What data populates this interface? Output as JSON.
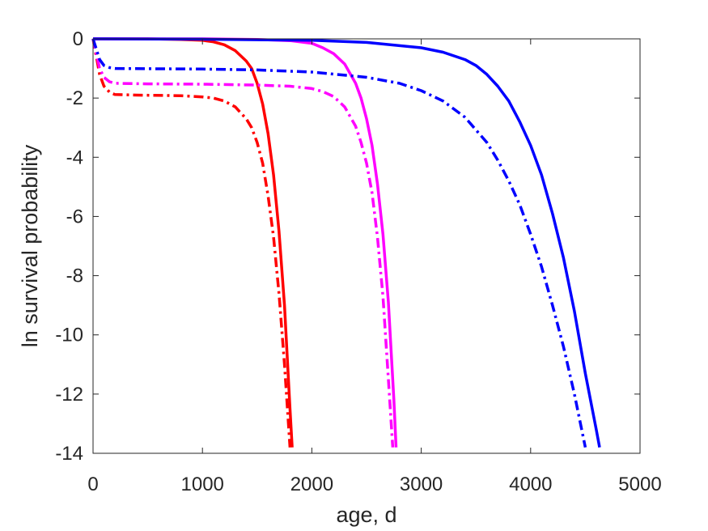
{
  "chart_data": {
    "type": "line",
    "title": "",
    "xlabel": "age, d",
    "ylabel": "ln survival probability",
    "xlim": [
      0,
      5000
    ],
    "ylim": [
      -14,
      0
    ],
    "xticks": [
      0,
      1000,
      2000,
      3000,
      4000,
      5000
    ],
    "yticks": [
      0,
      -2,
      -4,
      -6,
      -8,
      -10,
      -12,
      -14
    ],
    "xtick_labels": [
      "0",
      "1000",
      "2000",
      "3000",
      "4000",
      "5000"
    ],
    "ytick_labels": [
      "0",
      "-2",
      "-4",
      "-6",
      "-8",
      "-10",
      "-12",
      "-14"
    ],
    "grid": false,
    "legend": "none",
    "series": [
      {
        "color": "#ff0000",
        "style": "solid",
        "x": [
          0,
          500,
          800,
          1000,
          1100,
          1200,
          1300,
          1400,
          1450,
          1500,
          1550,
          1600,
          1650,
          1700,
          1750,
          1800,
          1820
        ],
        "y": [
          0,
          0,
          -0.02,
          -0.05,
          -0.1,
          -0.2,
          -0.4,
          -0.75,
          -1.0,
          -1.5,
          -2.2,
          -3.2,
          -4.6,
          -6.5,
          -9.0,
          -12.5,
          -13.8
        ]
      },
      {
        "color": "#ff0000",
        "style": "dashdot",
        "x": [
          0,
          30,
          60,
          100,
          150,
          200,
          400,
          800,
          1000,
          1100,
          1200,
          1300,
          1400,
          1450,
          1500,
          1550,
          1600,
          1650,
          1700,
          1750,
          1800
        ],
        "y": [
          0,
          -0.6,
          -1.2,
          -1.6,
          -1.8,
          -1.88,
          -1.9,
          -1.92,
          -1.96,
          -2.0,
          -2.1,
          -2.3,
          -2.7,
          -3.0,
          -3.5,
          -4.2,
          -5.3,
          -6.7,
          -8.6,
          -11.0,
          -13.8
        ]
      },
      {
        "color": "#ff00ff",
        "style": "solid",
        "x": [
          0,
          1000,
          1500,
          1800,
          2000,
          2100,
          2200,
          2300,
          2400,
          2450,
          2500,
          2550,
          2600,
          2650,
          2700,
          2750,
          2770
        ],
        "y": [
          0,
          0,
          -0.02,
          -0.06,
          -0.15,
          -0.3,
          -0.5,
          -0.85,
          -1.5,
          -2.0,
          -2.7,
          -3.6,
          -4.9,
          -6.6,
          -8.9,
          -12.2,
          -13.8
        ]
      },
      {
        "color": "#ff00ff",
        "style": "dashdot",
        "x": [
          0,
          30,
          60,
          100,
          150,
          200,
          500,
          1000,
          1500,
          1800,
          2000,
          2100,
          2200,
          2300,
          2400,
          2450,
          2500,
          2550,
          2600,
          2650,
          2700,
          2740
        ],
        "y": [
          0,
          -0.5,
          -1.0,
          -1.3,
          -1.45,
          -1.5,
          -1.52,
          -1.53,
          -1.56,
          -1.6,
          -1.68,
          -1.78,
          -1.95,
          -2.3,
          -2.95,
          -3.5,
          -4.2,
          -5.2,
          -6.7,
          -8.7,
          -11.5,
          -13.8
        ]
      },
      {
        "color": "#0000ff",
        "style": "solid",
        "x": [
          0,
          1000,
          2000,
          2500,
          3000,
          3200,
          3400,
          3500,
          3600,
          3700,
          3800,
          3900,
          4000,
          4100,
          4200,
          4300,
          4400,
          4500,
          4600,
          4630
        ],
        "y": [
          0,
          -0.01,
          -0.05,
          -0.12,
          -0.3,
          -0.45,
          -0.7,
          -0.9,
          -1.2,
          -1.6,
          -2.1,
          -2.8,
          -3.6,
          -4.6,
          -5.9,
          -7.4,
          -9.2,
          -11.3,
          -13.2,
          -13.8
        ]
      },
      {
        "color": "#0000ff",
        "style": "dashdot",
        "x": [
          0,
          30,
          60,
          100,
          150,
          200,
          500,
          1000,
          1500,
          2000,
          2500,
          2800,
          3000,
          3200,
          3400,
          3600,
          3700,
          3800,
          3900,
          4000,
          4100,
          4200,
          4300,
          4400,
          4500
        ],
        "y": [
          0,
          -0.35,
          -0.7,
          -0.9,
          -0.97,
          -1.0,
          -1.01,
          -1.02,
          -1.05,
          -1.12,
          -1.3,
          -1.5,
          -1.75,
          -2.1,
          -2.65,
          -3.5,
          -4.1,
          -4.8,
          -5.6,
          -6.6,
          -7.7,
          -9.0,
          -10.4,
          -12.0,
          -13.8
        ]
      }
    ]
  }
}
